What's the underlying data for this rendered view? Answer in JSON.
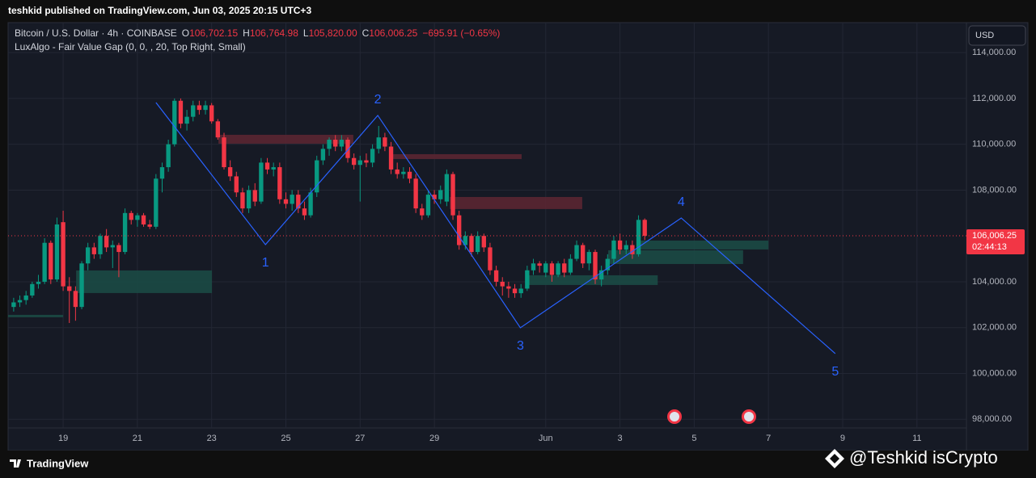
{
  "header": {
    "published": "teshkid published on TradingView.com, Jun 03, 2025 20:15 UTC+3"
  },
  "chart_data": {
    "type": "candlestick",
    "symbol": "Bitcoin / U.S. Dollar · 4h · COINBASE",
    "ohlc_legend": [
      {
        "key": "O",
        "value": "106,702.15"
      },
      {
        "key": "H",
        "value": "106,764.98"
      },
      {
        "key": "L",
        "value": "105,820.00"
      },
      {
        "key": "C",
        "value": "106,006.25"
      }
    ],
    "change": "−695.91 (−0.65%)",
    "indicator": "LuxAlgo - Fair Value Gap (0, 0, , 20, Top Right, Small)",
    "currency": "USD",
    "up_color": "#089981",
    "down_color": "#f23645",
    "x": [
      0,
      1,
      2,
      3,
      4,
      5,
      6,
      7,
      8,
      9,
      10,
      11,
      12,
      13,
      14,
      15,
      16,
      17,
      18,
      19,
      20,
      21,
      22,
      23,
      24,
      25,
      26,
      27,
      28,
      29,
      30,
      31,
      32,
      33,
      34,
      35,
      36,
      37,
      38,
      39,
      40,
      41,
      42,
      43,
      44,
      45,
      46,
      47,
      48,
      49,
      50,
      51,
      52,
      53,
      54,
      55,
      56,
      57,
      58,
      59,
      60,
      61,
      62,
      63,
      64,
      65,
      66,
      67,
      68,
      69,
      70,
      71,
      72,
      73,
      74,
      75,
      76,
      77,
      78,
      79,
      80,
      81,
      82,
      83,
      84,
      85,
      86,
      87,
      88,
      89,
      90,
      91,
      92,
      93,
      94,
      95,
      96,
      97,
      98,
      99,
      100,
      101,
      102
    ],
    "ohlc": [
      [
        102900,
        103300,
        102700,
        103100
      ],
      [
        103100,
        103400,
        102900,
        103200
      ],
      [
        103200,
        103600,
        103000,
        103400
      ],
      [
        103400,
        104000,
        103300,
        103900
      ],
      [
        103900,
        104300,
        103700,
        104000
      ],
      [
        104000,
        105900,
        103900,
        105700
      ],
      [
        105700,
        105800,
        103900,
        104100
      ],
      [
        104100,
        106800,
        104000,
        106500
      ],
      [
        106600,
        107100,
        103600,
        103800
      ],
      [
        103800,
        104200,
        102200,
        103600
      ],
      [
        103600,
        103800,
        102300,
        102900
      ],
      [
        102900,
        104900,
        102800,
        104800
      ],
      [
        104800,
        105700,
        104500,
        105500
      ],
      [
        105500,
        105700,
        105000,
        105200
      ],
      [
        105200,
        106100,
        105000,
        106000
      ],
      [
        106000,
        106300,
        105300,
        105500
      ],
      [
        105500,
        105800,
        104600,
        105600
      ],
      [
        105600,
        105700,
        104200,
        105300
      ],
      [
        105300,
        107200,
        105200,
        107000
      ],
      [
        107000,
        107100,
        106500,
        106700
      ],
      [
        106700,
        107000,
        106400,
        106900
      ],
      [
        106900,
        107000,
        106400,
        106500
      ],
      [
        106500,
        106700,
        106300,
        106400
      ],
      [
        106400,
        108700,
        106300,
        108500
      ],
      [
        108500,
        109200,
        107900,
        109000
      ],
      [
        109000,
        110200,
        108800,
        110000
      ],
      [
        110000,
        112000,
        109900,
        111900
      ],
      [
        111900,
        112000,
        110700,
        110900
      ],
      [
        110900,
        111500,
        110600,
        111200
      ],
      [
        111200,
        111900,
        111000,
        111700
      ],
      [
        111700,
        111900,
        111300,
        111500
      ],
      [
        111500,
        111900,
        111300,
        111700
      ],
      [
        111700,
        111800,
        110900,
        111000
      ],
      [
        111000,
        111100,
        110200,
        110300
      ],
      [
        110300,
        110500,
        108900,
        109000
      ],
      [
        109000,
        109300,
        108400,
        108600
      ],
      [
        108600,
        108800,
        107700,
        107900
      ],
      [
        107900,
        108100,
        107000,
        107200
      ],
      [
        107200,
        108200,
        107000,
        108000
      ],
      [
        108000,
        108300,
        107300,
        107500
      ],
      [
        107500,
        109400,
        107400,
        109200
      ],
      [
        109200,
        109400,
        108700,
        108900
      ],
      [
        108900,
        109200,
        108600,
        109000
      ],
      [
        109000,
        109200,
        107400,
        107600
      ],
      [
        107600,
        107900,
        107200,
        107400
      ],
      [
        107400,
        108000,
        107100,
        107800
      ],
      [
        107800,
        108000,
        107000,
        107200
      ],
      [
        107200,
        107500,
        106700,
        106900
      ],
      [
        106900,
        108100,
        106800,
        107900
      ],
      [
        107900,
        109500,
        107700,
        109300
      ],
      [
        109300,
        110000,
        109100,
        109800
      ],
      [
        109800,
        110300,
        109500,
        110200
      ],
      [
        110200,
        110400,
        109700,
        109900
      ],
      [
        109900,
        110400,
        109700,
        110200
      ],
      [
        110200,
        110300,
        109200,
        109400
      ],
      [
        109400,
        109600,
        108900,
        109100
      ],
      [
        109100,
        109500,
        107500,
        109300
      ],
      [
        109300,
        109600,
        109000,
        109200
      ],
      [
        109200,
        110000,
        109000,
        109800
      ],
      [
        109800,
        110800,
        109600,
        110300
      ],
      [
        110300,
        110500,
        109700,
        109900
      ],
      [
        109900,
        110100,
        108700,
        108900
      ],
      [
        108900,
        109200,
        108500,
        108700
      ],
      [
        108700,
        109000,
        108500,
        108800
      ],
      [
        108800,
        109000,
        108300,
        108500
      ],
      [
        108500,
        108700,
        107000,
        107200
      ],
      [
        107200,
        107400,
        106700,
        106900
      ],
      [
        106900,
        108000,
        106800,
        107800
      ],
      [
        107800,
        108000,
        107400,
        107600
      ],
      [
        107600,
        108200,
        107400,
        108000
      ],
      [
        107500,
        108900,
        107300,
        108700
      ],
      [
        108700,
        108800,
        106700,
        106900
      ],
      [
        106900,
        107100,
        105400,
        105600
      ],
      [
        105600,
        106200,
        105400,
        106000
      ],
      [
        106000,
        106100,
        105100,
        105300
      ],
      [
        105300,
        106200,
        105200,
        106000
      ],
      [
        106000,
        106100,
        105300,
        105500
      ],
      [
        105500,
        105700,
        104300,
        104500
      ],
      [
        104500,
        104700,
        103800,
        104000
      ],
      [
        104000,
        104200,
        103400,
        103800
      ],
      [
        103800,
        104000,
        103300,
        103700
      ],
      [
        103700,
        103900,
        103300,
        103500
      ],
      [
        103500,
        103900,
        103300,
        103700
      ],
      [
        103700,
        104700,
        103600,
        104500
      ],
      [
        104500,
        105000,
        104300,
        104800
      ],
      [
        104800,
        104900,
        104400,
        104700
      ],
      [
        104400,
        104900,
        104200,
        104800
      ],
      [
        104800,
        104900,
        104000,
        104300
      ],
      [
        104300,
        104900,
        104200,
        104800
      ],
      [
        104800,
        105000,
        104200,
        104400
      ],
      [
        104400,
        105200,
        104300,
        105000
      ],
      [
        105000,
        105800,
        104900,
        105600
      ],
      [
        105600,
        105700,
        104600,
        104800
      ],
      [
        104800,
        105400,
        104500,
        105300
      ],
      [
        105300,
        105400,
        103900,
        104100
      ],
      [
        104100,
        104700,
        103800,
        104500
      ],
      [
        104500,
        105200,
        104300,
        105000
      ],
      [
        105000,
        106000,
        104800,
        105800
      ],
      [
        105800,
        106100,
        105200,
        105400
      ],
      [
        105400,
        105800,
        105200,
        105600
      ],
      [
        105600,
        105800,
        105000,
        105200
      ],
      [
        105200,
        106900,
        105100,
        106700
      ],
      [
        106702.15,
        106764.98,
        105820,
        106006.25
      ]
    ],
    "fvg_zones": [
      {
        "x": [
          10.1,
          32.05
        ],
        "y": [
          103507,
          104493
        ],
        "color": "#1b4a45"
      },
      {
        "x": [
          -0.9,
          8
        ],
        "y": [
          102450,
          102555
        ],
        "color": "#1b4a45"
      },
      {
        "x": [
          83,
          104.1
        ],
        "y": [
          103859,
          104282
        ],
        "color": "#1b4a45"
      },
      {
        "x": [
          96.1,
          117.9
        ],
        "y": [
          104775,
          105374
        ],
        "color": "#1b4a45"
      },
      {
        "x": [
          101.1,
          122
        ],
        "y": [
          105410,
          105797
        ],
        "color": "#1b4a45"
      },
      {
        "x": [
          33.1,
          54.9
        ],
        "y": [
          110026,
          110414
        ],
        "color": "#5a2632"
      },
      {
        "x": [
          61.2,
          82.1
        ],
        "y": [
          109356,
          109568
        ],
        "color": "#5a2632"
      },
      {
        "x": [
          70.5,
          91.9
        ],
        "y": [
          107172,
          107700
        ],
        "color": "#5a2632"
      }
    ],
    "wave": {
      "x": [
        23,
        40.7,
        58.85,
        81.9,
        107.9,
        132.8
      ],
      "values": [
        111823,
        105621,
        111259,
        101991,
        106784,
        100864
      ],
      "labels": [
        null,
        "1",
        "2",
        "3",
        "4",
        "5"
      ],
      "color": "#2962ff"
    },
    "last_price": {
      "value": 106006.25,
      "label": "106,006.25",
      "countdown": "02:44:13",
      "color": "#f23645"
    },
    "xlim": [
      -0.9,
      154
    ],
    "ylim": [
      97620,
      115310
    ],
    "xticks": [
      {
        "value": 8,
        "label": "19"
      },
      {
        "value": 20,
        "label": "21"
      },
      {
        "value": 32,
        "label": "23"
      },
      {
        "value": 44,
        "label": "25"
      },
      {
        "value": 56,
        "label": "27"
      },
      {
        "value": 68,
        "label": "29"
      },
      {
        "value": 86,
        "label": "Jun"
      },
      {
        "value": 98,
        "label": "3"
      },
      {
        "value": 110,
        "label": "5"
      },
      {
        "value": 122,
        "label": "7"
      },
      {
        "value": 134,
        "label": "9"
      },
      {
        "value": 146,
        "label": "11"
      }
    ],
    "yticks": [
      {
        "value": 98000,
        "label": "98,000.00"
      },
      {
        "value": 100000,
        "label": "100,000.00"
      },
      {
        "value": 102000,
        "label": "102,000.00"
      },
      {
        "value": 104000,
        "label": "104,000.00"
      },
      {
        "value": 108000,
        "label": "108,000.00"
      },
      {
        "value": 110000,
        "label": "110,000.00"
      },
      {
        "value": 112000,
        "label": "112,000.00"
      },
      {
        "value": 114000,
        "label": "114,000.00"
      }
    ],
    "grid": true
  },
  "footer": {
    "brand": "TradingView",
    "watermark": "@Teshkid isCrypto"
  }
}
